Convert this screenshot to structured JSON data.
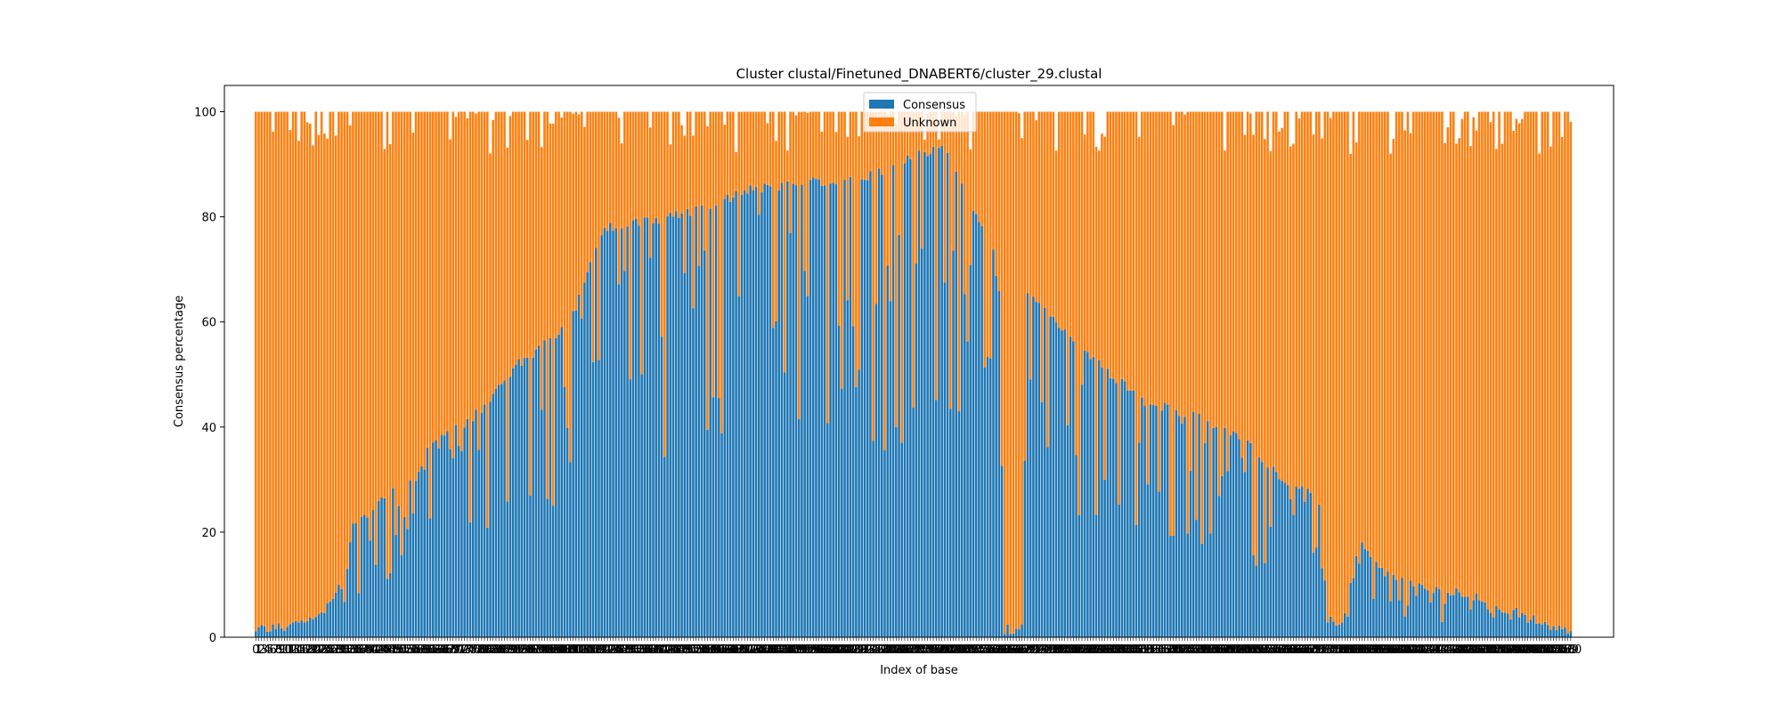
{
  "chart_data": {
    "type": "bar",
    "stacked": true,
    "title": "Cluster clustal/Finetuned_DNABERT6/cluster_29.clustal",
    "xlabel": "Index of base",
    "ylabel": "Consensus percentage",
    "ylim": [
      0,
      105
    ],
    "xlim": [
      -11,
      475
    ],
    "y_ticks": [
      0,
      20,
      40,
      60,
      80,
      100
    ],
    "legend_location": "upper center",
    "series": [
      {
        "name": "Consensus",
        "color": "#1f77b4"
      },
      {
        "name": "Unknown",
        "color": "#ff7f0e"
      }
    ],
    "bar_count": 461,
    "approx_profile_note_free": true,
    "consensus_profile_points": [
      [
        0,
        1.5
      ],
      [
        12,
        2
      ],
      [
        22,
        4
      ],
      [
        30,
        10
      ],
      [
        34,
        21
      ],
      [
        40,
        24
      ],
      [
        48,
        28
      ],
      [
        56,
        30
      ],
      [
        62,
        38
      ],
      [
        72,
        40
      ],
      [
        82,
        45
      ],
      [
        92,
        52
      ],
      [
        104,
        57
      ],
      [
        112,
        63
      ],
      [
        120,
        76
      ],
      [
        124,
        78
      ],
      [
        132,
        79
      ],
      [
        145,
        80
      ],
      [
        160,
        82
      ],
      [
        172,
        85
      ],
      [
        185,
        86
      ],
      [
        200,
        87
      ],
      [
        215,
        88
      ],
      [
        228,
        91
      ],
      [
        240,
        93
      ],
      [
        246,
        88
      ],
      [
        252,
        80
      ],
      [
        258,
        73
      ],
      [
        260,
        65
      ],
      [
        262,
        1.5
      ],
      [
        268,
        1.5
      ],
      [
        270,
        65
      ],
      [
        280,
        60
      ],
      [
        295,
        52
      ],
      [
        310,
        45
      ],
      [
        330,
        42
      ],
      [
        345,
        38
      ],
      [
        360,
        30
      ],
      [
        372,
        26
      ],
      [
        375,
        3
      ],
      [
        380,
        3
      ],
      [
        386,
        18
      ],
      [
        395,
        12
      ],
      [
        410,
        9
      ],
      [
        425,
        8
      ],
      [
        440,
        5
      ],
      [
        452,
        2
      ],
      [
        461,
        0.5
      ]
    ],
    "colors": {
      "consensus": "#1f77b4",
      "unknown": "#ff7f0e"
    }
  }
}
